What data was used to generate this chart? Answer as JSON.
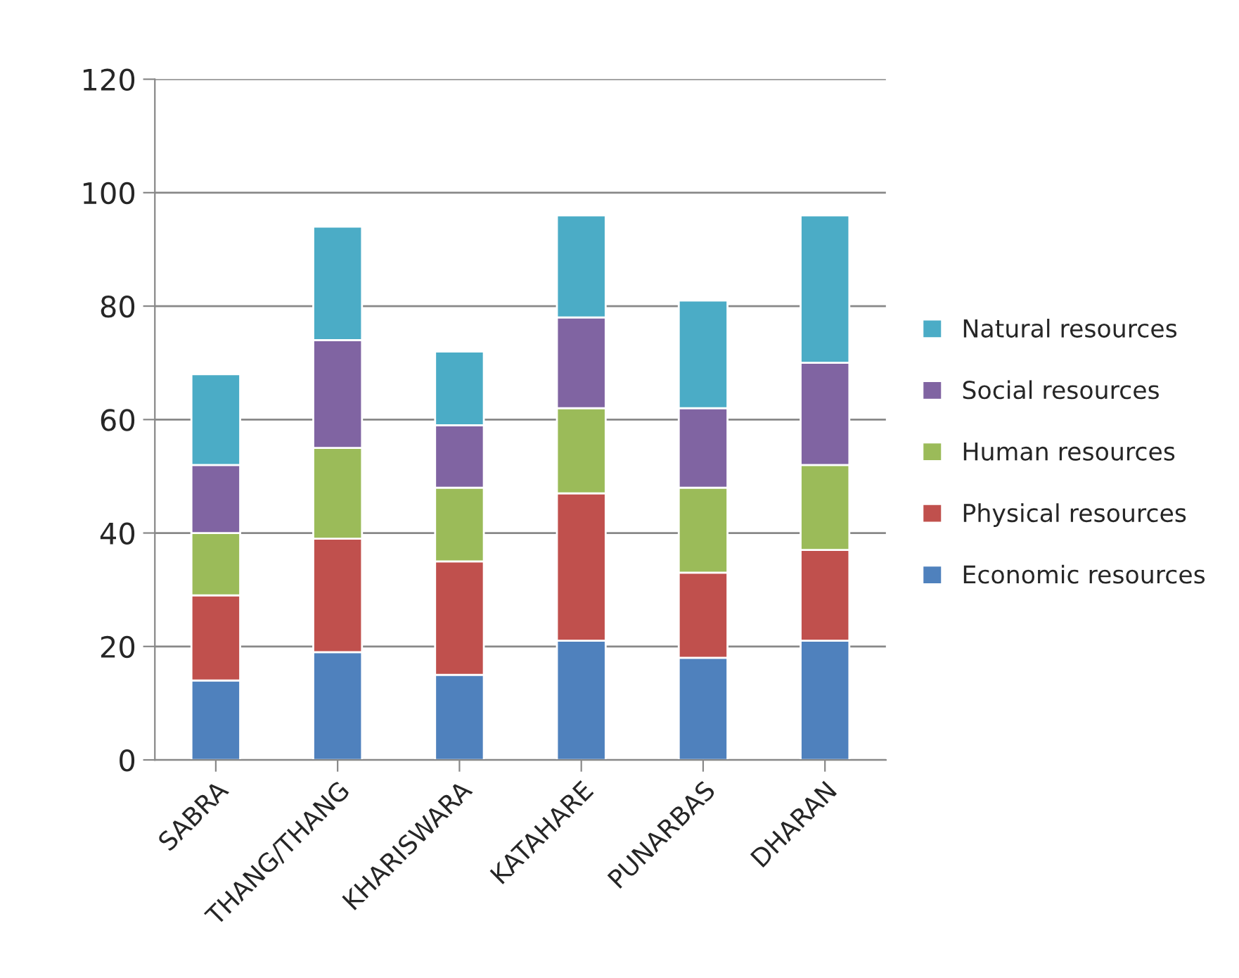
{
  "chart_data": {
    "type": "bar",
    "stacked": true,
    "categories": [
      "SABRA",
      "THANG/THANG",
      "KHARISWARA",
      "KATAHARE",
      "PUNARBAS",
      "DHARAN"
    ],
    "series": [
      {
        "name": "Economic resources",
        "color": "#4f81bd",
        "values": [
          14,
          19,
          15,
          21,
          18,
          21
        ]
      },
      {
        "name": "Physical resources",
        "color": "#c0504d",
        "values": [
          15,
          20,
          20,
          26,
          15,
          16
        ]
      },
      {
        "name": "Human resources",
        "color": "#9bbb59",
        "values": [
          11,
          16,
          13,
          15,
          15,
          15
        ]
      },
      {
        "name": "Social resources",
        "color": "#8064a2",
        "values": [
          12,
          19,
          11,
          16,
          14,
          18
        ]
      },
      {
        "name": "Natural resources",
        "color": "#4bacc6",
        "values": [
          16,
          20,
          13,
          18,
          19,
          26
        ]
      }
    ],
    "ylim": [
      0,
      120
    ],
    "yticks": [
      0,
      20,
      40,
      60,
      80,
      100,
      120
    ],
    "grid": "y",
    "legend": "right"
  }
}
